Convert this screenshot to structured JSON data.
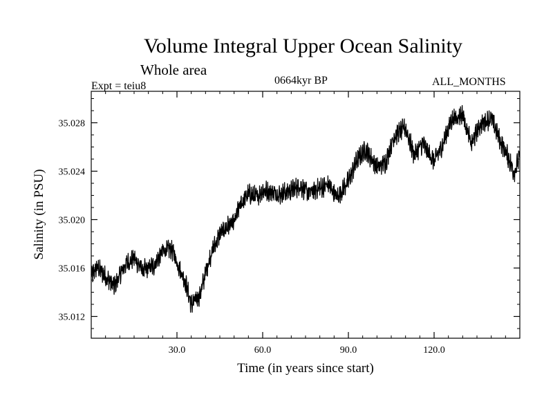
{
  "header": {
    "title": "Volume Integral Upper Ocean Salinity",
    "subtitle": "Whole area",
    "experiment": "Expt = teiu8",
    "period": "0664kyr BP",
    "months": "ALL_MONTHS"
  },
  "chart_data": {
    "type": "line",
    "title": "Volume Integral Upper Ocean Salinity",
    "xlabel": "Time (in years since start)",
    "ylabel": "Salinity (in PSU)",
    "xlim": [
      0,
      150
    ],
    "ylim": [
      35.0102,
      35.0306
    ],
    "xticks": [
      30,
      60,
      90,
      120
    ],
    "xtick_labels": [
      "30.0",
      "60.0",
      "90.0",
      "120.0"
    ],
    "yticks": [
      35.012,
      35.016,
      35.02,
      35.024,
      35.028
    ],
    "ytick_labels": [
      "35.012",
      "35.016",
      "35.020",
      "35.024",
      "35.028"
    ],
    "series": [
      {
        "name": "salinity",
        "noise_amplitude": 0.0008,
        "x": [
          0,
          2,
          5,
          8,
          12,
          15,
          18,
          22,
          25,
          28,
          30,
          33,
          35,
          38,
          40,
          42,
          45,
          48,
          50,
          52,
          55,
          58,
          60,
          63,
          66,
          70,
          73,
          76,
          80,
          83,
          86,
          90,
          93,
          96,
          100,
          103,
          106,
          110,
          113,
          116,
          120,
          123,
          126,
          130,
          133,
          136,
          140,
          143,
          146,
          148,
          150
        ],
        "y": [
          35.0153,
          35.0161,
          35.0153,
          35.0145,
          35.0163,
          35.0168,
          35.0158,
          35.0162,
          35.0174,
          35.0176,
          35.0165,
          35.0148,
          35.013,
          35.0137,
          35.0156,
          35.0172,
          35.0188,
          35.0195,
          35.0197,
          35.0212,
          35.0221,
          35.0219,
          35.0224,
          35.0223,
          35.0221,
          35.0224,
          35.0228,
          35.0222,
          35.0226,
          35.0229,
          35.0218,
          35.0232,
          35.0249,
          35.0258,
          35.0243,
          35.0247,
          35.0269,
          35.0276,
          35.0253,
          35.0263,
          35.0248,
          35.0262,
          35.0282,
          35.0287,
          35.0262,
          35.0278,
          35.0284,
          35.0266,
          35.0251,
          35.0239,
          35.0252
        ]
      }
    ]
  }
}
